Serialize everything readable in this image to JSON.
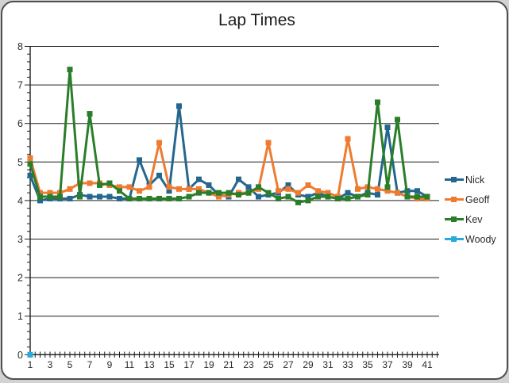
{
  "frame": {
    "page_background": "#d2d2d2",
    "card_background": "#ffffff",
    "card_border_color": "#4f4f4f"
  },
  "chart_data": {
    "type": "line",
    "title": "Lap Times",
    "xlabel": "",
    "ylabel": "",
    "xlim": [
      1,
      41
    ],
    "ylim": [
      0,
      8
    ],
    "y_ticks": [
      0,
      1,
      2,
      3,
      4,
      5,
      6,
      7,
      8
    ],
    "x_tick_labels": [
      1,
      3,
      5,
      7,
      9,
      11,
      13,
      15,
      17,
      19,
      21,
      23,
      25,
      27,
      29,
      31,
      33,
      35,
      37,
      39,
      41
    ],
    "grid": "horizontal-major",
    "gridline_color": "#1f1f1f",
    "axis_text_color": "#2b2b2b",
    "marker_shape": "square",
    "legend_position": "right",
    "x": [
      1,
      2,
      3,
      4,
      5,
      6,
      7,
      8,
      9,
      10,
      11,
      12,
      13,
      14,
      15,
      16,
      17,
      18,
      19,
      20,
      21,
      22,
      23,
      24,
      25,
      26,
      27,
      28,
      29,
      30,
      31,
      32,
      33,
      34,
      35,
      36,
      37,
      38,
      39,
      40,
      41
    ],
    "series": [
      {
        "name": "Nick",
        "color": "#24678D",
        "values": [
          4.65,
          4.0,
          4.05,
          4.05,
          4.05,
          4.15,
          4.1,
          4.1,
          4.1,
          4.05,
          4.05,
          5.05,
          4.4,
          4.65,
          4.25,
          6.45,
          4.3,
          4.55,
          4.4,
          4.15,
          4.1,
          4.55,
          4.35,
          4.1,
          4.15,
          4.2,
          4.4,
          4.15,
          4.1,
          4.2,
          4.1,
          4.05,
          4.2,
          4.1,
          4.2,
          4.15,
          5.9,
          4.2,
          4.25,
          4.25,
          4.1
        ]
      },
      {
        "name": "Geoff",
        "color": "#EE7B30",
        "values": [
          5.1,
          4.2,
          4.2,
          4.2,
          4.3,
          4.45,
          4.45,
          4.45,
          4.4,
          4.35,
          4.35,
          4.25,
          4.35,
          5.5,
          4.35,
          4.3,
          4.3,
          4.3,
          4.2,
          4.1,
          4.15,
          4.2,
          4.2,
          4.3,
          5.5,
          4.25,
          4.3,
          4.2,
          4.4,
          4.25,
          4.2,
          4.1,
          5.6,
          4.3,
          4.35,
          4.3,
          4.25,
          4.2,
          4.1,
          4.05,
          4.05
        ]
      },
      {
        "name": "Kev",
        "color": "#2A7E2A",
        "values": [
          4.95,
          4.1,
          4.1,
          4.1,
          7.4,
          4.1,
          6.25,
          4.4,
          4.45,
          4.25,
          4.05,
          4.05,
          4.05,
          4.05,
          4.05,
          4.05,
          4.1,
          4.2,
          4.2,
          4.2,
          4.2,
          4.15,
          4.2,
          4.35,
          4.2,
          4.05,
          4.1,
          3.95,
          4.0,
          4.1,
          4.1,
          4.05,
          4.05,
          4.1,
          4.15,
          6.55,
          4.35,
          6.1,
          4.1,
          4.1,
          4.1
        ]
      },
      {
        "name": "Woody",
        "color": "#2BA9DF",
        "values": [
          0,
          null,
          null,
          null,
          null,
          null,
          null,
          null,
          null,
          null,
          null,
          null,
          null,
          null,
          null,
          null,
          null,
          null,
          null,
          null,
          null,
          null,
          null,
          null,
          null,
          null,
          null,
          null,
          null,
          null,
          null,
          null,
          null,
          null,
          null,
          null,
          null,
          null,
          null,
          null,
          null
        ]
      }
    ]
  }
}
